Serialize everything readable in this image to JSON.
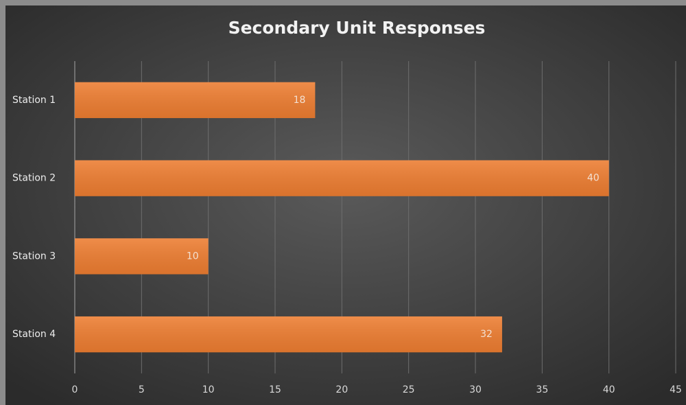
{
  "chart_data": {
    "type": "bar",
    "orientation": "horizontal",
    "title": "Secondary Unit Responses",
    "categories": [
      "Station 1",
      "Station 2",
      "Station 3",
      "Station 4"
    ],
    "values": [
      18,
      40,
      10,
      32
    ],
    "color": "#ed7d31",
    "xlim": [
      0,
      45
    ],
    "xticks": [
      0,
      5,
      10,
      15,
      20,
      25,
      30,
      35,
      40,
      45
    ],
    "grid": true
  }
}
